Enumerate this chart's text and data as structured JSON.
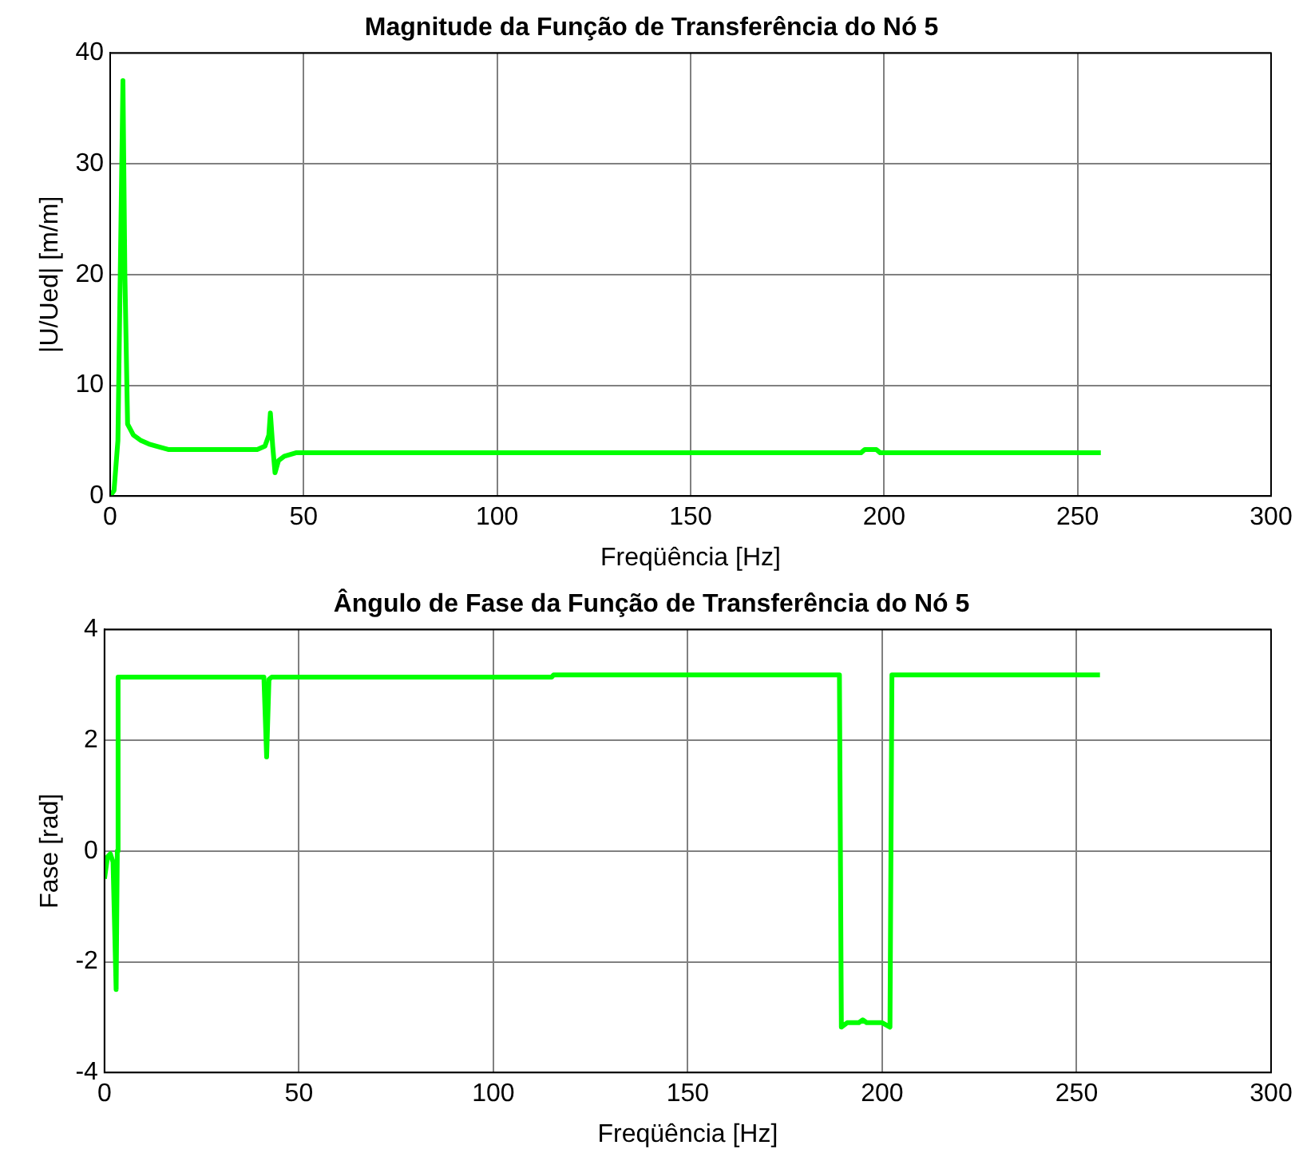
{
  "chart_data": [
    {
      "type": "line",
      "title": "Magnitude da Função de Transferência do Nó 5",
      "xlabel": "Freqüência [Hz]",
      "ylabel": "|U/Ued| [m/m]",
      "xlim": [
        0,
        300
      ],
      "xticks": [
        0,
        50,
        100,
        150,
        200,
        250,
        300
      ],
      "ylim": [
        0,
        40
      ],
      "yticks": [
        0,
        10,
        20,
        30,
        40
      ],
      "grid": true,
      "legend": false,
      "marker": "none",
      "line_style": "solid",
      "series": [
        {
          "color": "#00ff00",
          "x": [
            0,
            1,
            2,
            2.8,
            3.3,
            3.8,
            4.5,
            6,
            8,
            10,
            12,
            15,
            20,
            30,
            38,
            40,
            41,
            41.4,
            42,
            42.6,
            43.5,
            45,
            48,
            60,
            100,
            150,
            194,
            195,
            198,
            199,
            200,
            256
          ],
          "values": [
            0,
            0.5,
            5,
            25,
            37.5,
            20,
            6.5,
            5.5,
            5,
            4.7,
            4.5,
            4.2,
            4.2,
            4.2,
            4.2,
            4.5,
            5.5,
            7.5,
            4.5,
            2.1,
            3.2,
            3.6,
            3.9,
            3.9,
            3.9,
            3.9,
            3.9,
            4.2,
            4.2,
            3.9,
            3.9,
            3.9
          ]
        }
      ]
    },
    {
      "type": "line",
      "title": "Ângulo de Fase da Função de Transferência do Nó 5",
      "xlabel": "Freqüência [Hz]",
      "ylabel": "Fase [rad]",
      "xlim": [
        0,
        300
      ],
      "xticks": [
        0,
        50,
        100,
        150,
        200,
        250,
        300
      ],
      "ylim": [
        -4,
        4
      ],
      "yticks": [
        -4,
        -2,
        0,
        2,
        4
      ],
      "grid": true,
      "legend": false,
      "marker": "none",
      "line_style": "solid",
      "series": [
        {
          "color": "#00ff00",
          "x": [
            0,
            0.8,
            1.5,
            2.2,
            3,
            3.3,
            3.5,
            41,
            41.7,
            42.3,
            43,
            115,
            115.5,
            189,
            189.5,
            191,
            194,
            195,
            196,
            200,
            202,
            202.5,
            256
          ],
          "values": [
            -0.5,
            -0.1,
            -0.05,
            -0.2,
            -2.5,
            0,
            3.14,
            3.14,
            1.7,
            3.1,
            3.14,
            3.14,
            3.18,
            3.18,
            -3.18,
            -3.1,
            -3.1,
            -3.05,
            -3.1,
            -3.1,
            -3.18,
            3.18,
            3.18
          ]
        }
      ]
    }
  ]
}
